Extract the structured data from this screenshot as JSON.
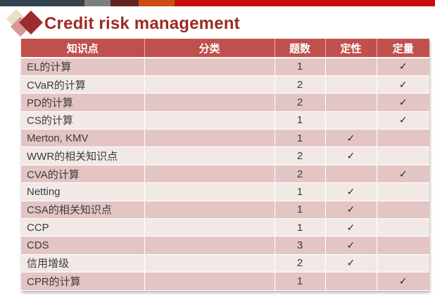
{
  "slide": {
    "title": "Credit risk management",
    "title_color": "#9c2b23",
    "accent_bar_colors": [
      "#33424f",
      "#7f7f7f",
      "#632523",
      "#cc4e14",
      "#c80c10"
    ],
    "logo_colors": [
      "#e9e0cb",
      "#d99795",
      "#9e2b30"
    ]
  },
  "table": {
    "header_bg": "#c0504d",
    "row_dark": "#e3c6c4",
    "row_light": "#f2e9e7",
    "check_glyph": "✓",
    "columns": [
      "知识点",
      "分类",
      "题数",
      "定性",
      "定量"
    ],
    "rows": [
      {
        "topic": "EL的计算",
        "category": "",
        "count": "1",
        "qualitative": "",
        "quantitative": "✓"
      },
      {
        "topic": "CVaR的计算",
        "category": "",
        "count": "2",
        "qualitative": "",
        "quantitative": "✓"
      },
      {
        "topic": "PD的计算",
        "category": "",
        "count": "2",
        "qualitative": "",
        "quantitative": "✓"
      },
      {
        "topic": "CS的计算",
        "category": "",
        "count": "1",
        "qualitative": "",
        "quantitative": "✓"
      },
      {
        "topic": "Merton, KMV",
        "category": "",
        "count": "1",
        "qualitative": "✓",
        "quantitative": ""
      },
      {
        "topic": "WWR的相关知识点",
        "category": "",
        "count": "2",
        "qualitative": "✓",
        "quantitative": ""
      },
      {
        "topic": "CVA的计算",
        "category": "",
        "count": "2",
        "qualitative": "",
        "quantitative": "✓"
      },
      {
        "topic": "Netting",
        "category": "",
        "count": "1",
        "qualitative": "✓",
        "quantitative": ""
      },
      {
        "topic": "CSA的相关知识点",
        "category": "",
        "count": "1",
        "qualitative": "✓",
        "quantitative": ""
      },
      {
        "topic": "CCP",
        "category": "",
        "count": "1",
        "qualitative": "✓",
        "quantitative": ""
      },
      {
        "topic": "CDS",
        "category": "",
        "count": "3",
        "qualitative": "✓",
        "quantitative": ""
      },
      {
        "topic": "信用增级",
        "category": "",
        "count": "2",
        "qualitative": "✓",
        "quantitative": ""
      },
      {
        "topic": "CPR的计算",
        "category": "",
        "count": "1",
        "qualitative": "",
        "quantitative": "✓"
      }
    ]
  }
}
